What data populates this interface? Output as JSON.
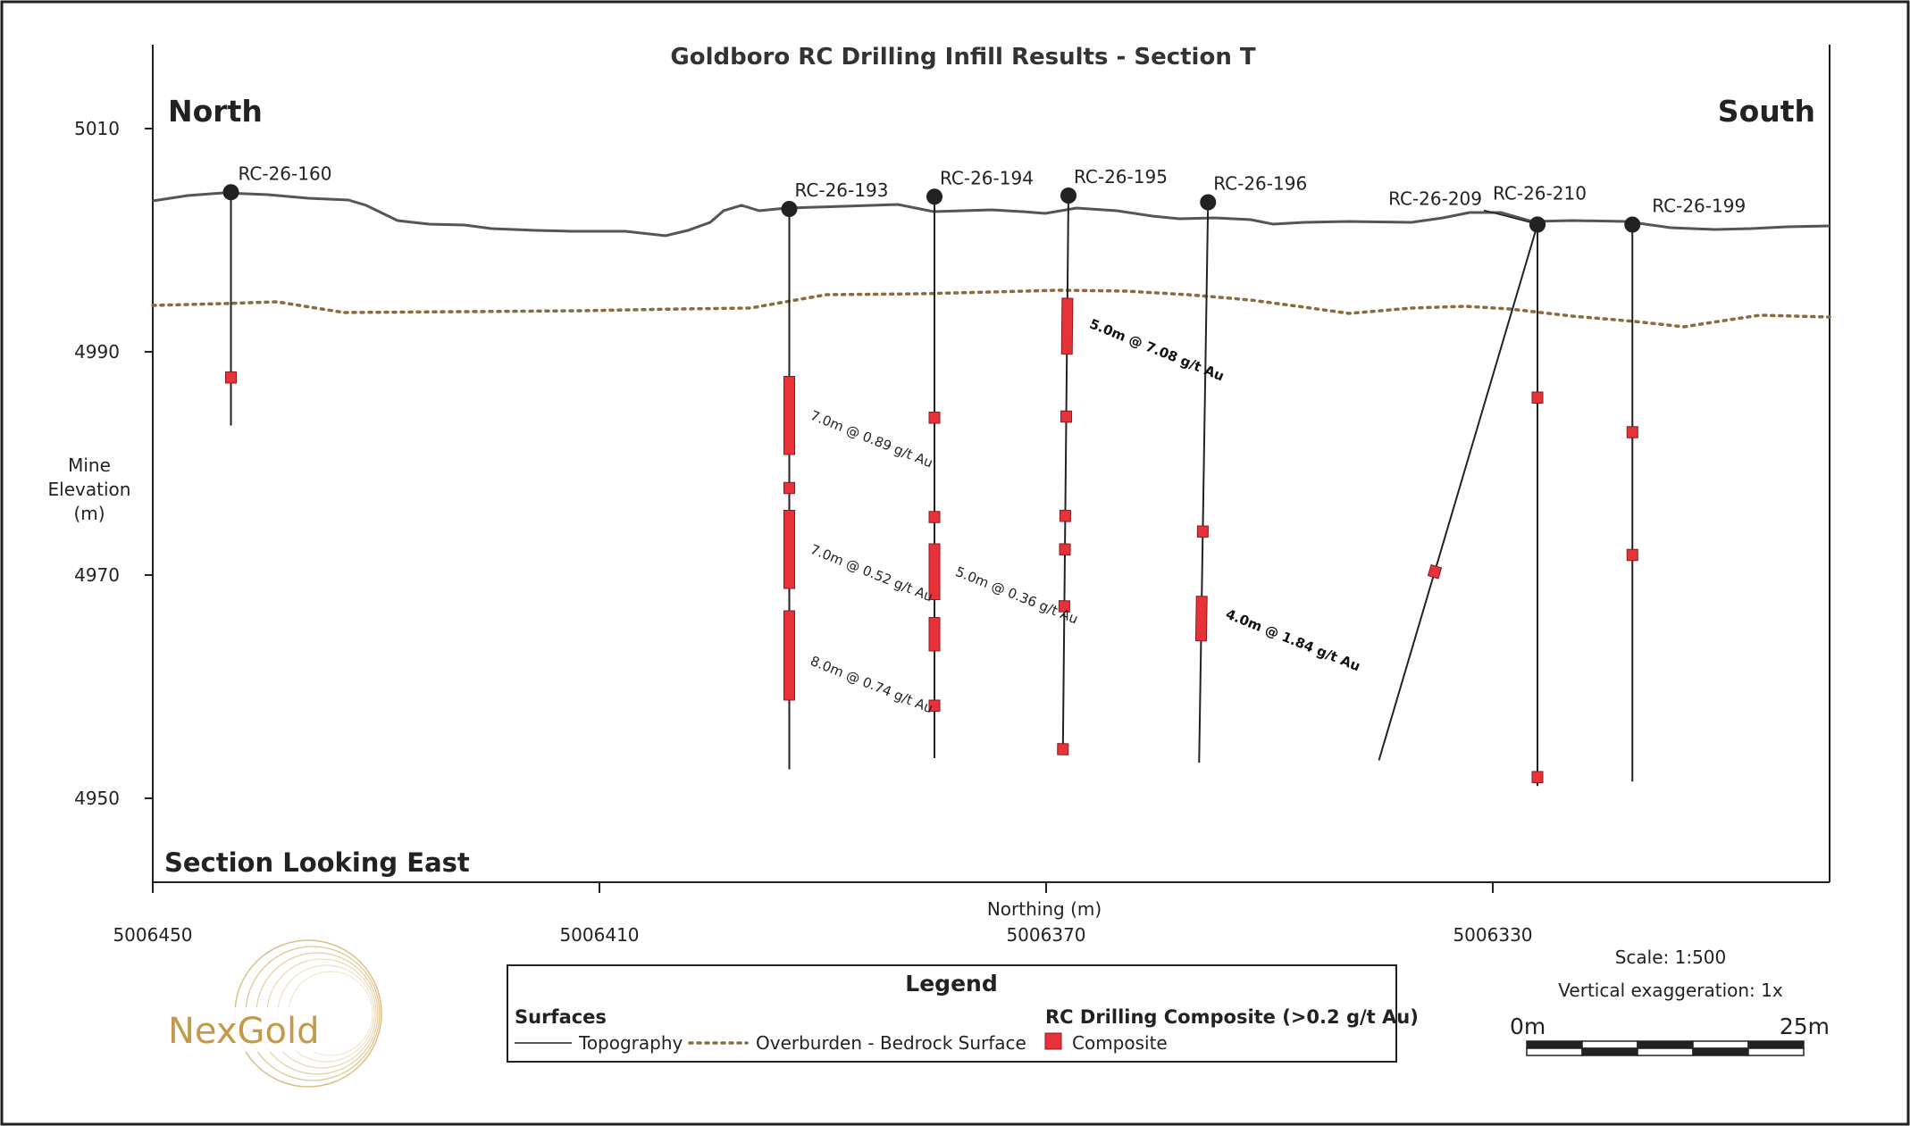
{
  "title": "Goldboro RC Drilling Infill Results - Section T",
  "north_label": "North",
  "south_label": "South",
  "section_label": "Section Looking East",
  "y_axis": {
    "label_lines": [
      "Mine",
      "Elevation",
      "(m)"
    ],
    "ticks": [
      5010,
      4990,
      4970,
      4950
    ]
  },
  "x_axis": {
    "label": "Northing (m)",
    "ticks": [
      "5006450",
      "5006410",
      "5006370",
      "5006330"
    ]
  },
  "legend": {
    "title": "Legend",
    "surfaces_heading": "Surfaces",
    "topography": "Topography",
    "overburden": "Overburden - Bedrock Surface",
    "rc_heading": "RC Drilling Composite (>0.2 g/t Au)",
    "composite": "Composite"
  },
  "scale": {
    "text": "Scale: 1:500",
    "exaggeration": "Vertical exaggeration: 1x",
    "bar_start": "0m",
    "bar_end": "25m"
  },
  "logo_text": "NexGold",
  "colors": {
    "topography": "#555555",
    "overburden": "#8b6b3d",
    "composite": "#e8323a",
    "collar": "#222222",
    "logo": "#c49a4a"
  },
  "drill_holes": [
    {
      "name": "RC-26-160",
      "collar": {
        "northing": 5006443,
        "elev": 5004.3
      },
      "end": {
        "northing": 5006443,
        "elev": 4983.4
      }
    },
    {
      "name": "RC-26-193",
      "collar": {
        "northing": 5006393,
        "elev": 5002.8
      },
      "end": {
        "northing": 5006393,
        "elev": 4952.6
      }
    },
    {
      "name": "RC-26-194",
      "collar": {
        "northing": 5006380,
        "elev": 5003.9
      },
      "end": {
        "northing": 5006380,
        "elev": 4953.6
      }
    },
    {
      "name": "RC-26-195",
      "collar": {
        "northing": 5006368,
        "elev": 5004.0
      },
      "end": {
        "northing": 5006368.5,
        "elev": 4954.0
      }
    },
    {
      "name": "RC-26-196",
      "collar": {
        "northing": 5006355.5,
        "elev": 5003.4
      },
      "end": {
        "northing": 5006356.3,
        "elev": 4953.2
      }
    },
    {
      "name": "RC-26-209",
      "collar": {
        "northing": 5006326,
        "elev": 5001.4
      },
      "end": {
        "northing": 5006340.2,
        "elev": 4953.4
      }
    },
    {
      "name": "RC-26-210",
      "collar": {
        "northing": 5006326,
        "elev": 5001.4
      },
      "end": {
        "northing": 5006326,
        "elev": 4951.1
      }
    },
    {
      "name": "RC-26-199",
      "collar": {
        "northing": 5006317.5,
        "elev": 5001.4
      },
      "end": {
        "northing": 5006317.5,
        "elev": 4951.5
      }
    }
  ],
  "composites": [
    {
      "hole": "RC-26-160",
      "from_elev": 4988.2,
      "to_elev": 4987.2
    },
    {
      "hole": "RC-26-193",
      "from_elev": 4987.8,
      "to_elev": 4980.8
    },
    {
      "hole": "RC-26-193",
      "from_elev": 4978.3,
      "to_elev": 4977.3
    },
    {
      "hole": "RC-26-193",
      "from_elev": 4975.8,
      "to_elev": 4968.8
    },
    {
      "hole": "RC-26-193",
      "from_elev": 4966.8,
      "to_elev": 4958.8
    },
    {
      "hole": "RC-26-194",
      "from_elev": 4984.6,
      "to_elev": 4983.6
    },
    {
      "hole": "RC-26-194",
      "from_elev": 4975.7,
      "to_elev": 4974.7
    },
    {
      "hole": "RC-26-194",
      "from_elev": 4972.8,
      "to_elev": 4967.8
    },
    {
      "hole": "RC-26-194",
      "from_elev": 4966.2,
      "to_elev": 4963.2
    },
    {
      "hole": "RC-26-194",
      "from_elev": 4958.8,
      "to_elev": 4957.8
    },
    {
      "hole": "RC-26-195",
      "from_elev": 4994.8,
      "to_elev": 4989.8
    },
    {
      "hole": "RC-26-195",
      "from_elev": 4984.7,
      "to_elev": 4983.7
    },
    {
      "hole": "RC-26-195",
      "from_elev": 4975.8,
      "to_elev": 4974.8
    },
    {
      "hole": "RC-26-195",
      "from_elev": 4972.8,
      "to_elev": 4971.8
    },
    {
      "hole": "RC-26-195",
      "from_elev": 4967.7,
      "to_elev": 4966.7
    },
    {
      "hole": "RC-26-195",
      "from_elev": 4954.9,
      "to_elev": 4953.9
    },
    {
      "hole": "RC-26-196",
      "from_elev": 4974.4,
      "to_elev": 4973.4
    },
    {
      "hole": "RC-26-196",
      "from_elev": 4968.1,
      "to_elev": 4964.1
    },
    {
      "hole": "RC-26-209",
      "from_elev": 4970.8,
      "to_elev": 4969.8
    },
    {
      "hole": "RC-26-210",
      "from_elev": 4986.4,
      "to_elev": 4985.4
    },
    {
      "hole": "RC-26-210",
      "from_elev": 4952.4,
      "to_elev": 4951.4
    },
    {
      "hole": "RC-26-199",
      "from_elev": 4983.3,
      "to_elev": 4982.3
    },
    {
      "hole": "RC-26-199",
      "from_elev": 4972.3,
      "to_elev": 4971.3
    }
  ],
  "intervals": [
    {
      "text": "7.0m @ 0.89 g/t Au",
      "bold": false,
      "anchor": {
        "northing": 5006392,
        "elev": 4984.0
      }
    },
    {
      "text": "7.0m @ 0.52 g/t Au",
      "bold": false,
      "anchor": {
        "northing": 5006392,
        "elev": 4972.0
      }
    },
    {
      "text": "8.0m @ 0.74 g/t Au",
      "bold": false,
      "anchor": {
        "northing": 5006392,
        "elev": 4962.0
      }
    },
    {
      "text": "5.0m @ 0.36 g/t Au",
      "bold": false,
      "anchor": {
        "northing": 5006379,
        "elev": 4970.0
      }
    },
    {
      "text": "5.0m @ 7.08 g/t Au",
      "bold": true,
      "anchor": {
        "northing": 5006367,
        "elev": 4992.2
      }
    },
    {
      "text": "4.0m @ 1.84 g/t Au",
      "bold": true,
      "anchor": {
        "northing": 5006354.8,
        "elev": 4966.2
      }
    }
  ]
}
